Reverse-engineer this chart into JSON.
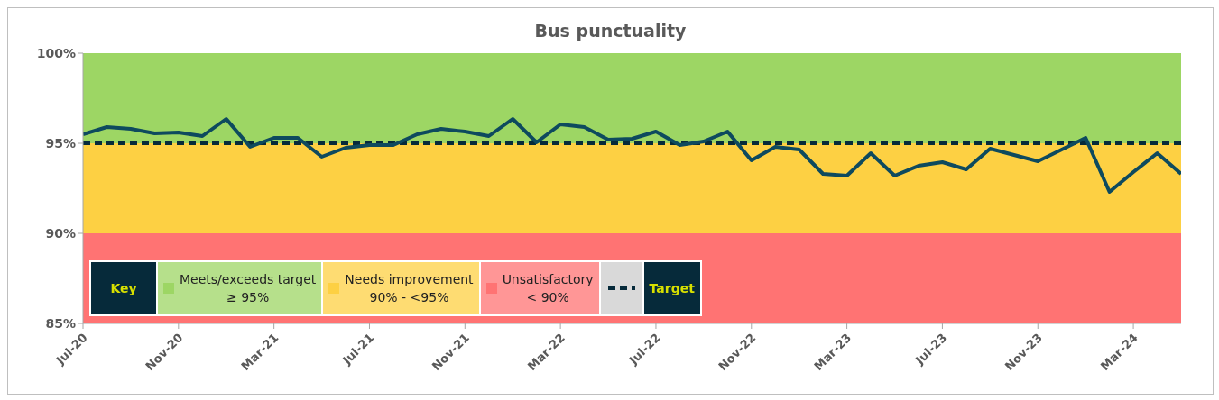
{
  "chart_data": {
    "type": "line",
    "title": "Bus punctuality",
    "x": [
      "2020-07",
      "2020-08",
      "2020-09",
      "2020-10",
      "2020-11",
      "2020-12",
      "2021-01",
      "2021-02",
      "2021-03",
      "2021-04",
      "2021-05",
      "2021-06",
      "2021-07",
      "2021-08",
      "2021-09",
      "2021-10",
      "2021-11",
      "2021-12",
      "2022-01",
      "2022-02",
      "2022-03",
      "2022-04",
      "2022-05",
      "2022-06",
      "2022-07",
      "2022-08",
      "2022-09",
      "2022-10",
      "2022-11",
      "2022-12",
      "2023-01",
      "2023-02",
      "2023-03",
      "2023-04",
      "2023-05",
      "2023-06",
      "2023-07",
      "2023-08",
      "2023-09",
      "2023-10",
      "2023-11",
      "2023-12",
      "2024-01",
      "2024-02",
      "2024-03",
      "2024-04",
      "2024-05"
    ],
    "series": [
      {
        "color": "#0e4a5e",
        "values": [
          95.5,
          95.9,
          95.8,
          95.55,
          95.6,
          95.4,
          96.35,
          94.8,
          95.3,
          95.3,
          94.25,
          94.75,
          94.9,
          94.9,
          95.5,
          95.8,
          95.65,
          95.4,
          96.35,
          95.05,
          96.05,
          95.9,
          95.2,
          95.25,
          95.65,
          94.9,
          95.1,
          95.65,
          94.05,
          94.8,
          94.65,
          93.3,
          93.2,
          94.45,
          93.2,
          93.75,
          93.95,
          93.55,
          94.7,
          94.35,
          94.0,
          94.65,
          95.3,
          92.3,
          93.4,
          94.45,
          93.3
        ]
      }
    ],
    "xlim": [
      "2020-07",
      "2024-05"
    ],
    "xticks": [
      {
        "value": "2020-07",
        "label": "Jul-20"
      },
      {
        "value": "2020-11",
        "label": "Nov-20"
      },
      {
        "value": "2021-03",
        "label": "Mar-21"
      },
      {
        "value": "2021-07",
        "label": "Jul-21"
      },
      {
        "value": "2021-11",
        "label": "Nov-21"
      },
      {
        "value": "2022-03",
        "label": "Mar-22"
      },
      {
        "value": "2022-07",
        "label": "Jul-22"
      },
      {
        "value": "2022-11",
        "label": "Nov-22"
      },
      {
        "value": "2023-03",
        "label": "Mar-23"
      },
      {
        "value": "2023-07",
        "label": "Jul-23"
      },
      {
        "value": "2023-11",
        "label": "Nov-23"
      },
      {
        "value": "2024-03",
        "label": "Mar-24"
      }
    ],
    "ylim": [
      85,
      100
    ],
    "yticks": [
      {
        "value": 85,
        "label": "85%"
      },
      {
        "value": 90,
        "label": "90%"
      },
      {
        "value": 95,
        "label": "95%"
      },
      {
        "value": 100,
        "label": "100%"
      }
    ],
    "bands": [
      {
        "axis": "y",
        "from": 95,
        "to": 100,
        "label": "Meets/exceeds target\n≥ 95%",
        "color": "#9dd664"
      },
      {
        "axis": "y",
        "from": 90,
        "to": 95,
        "label": "Needs improvement\n90% - <95%",
        "color": "#fdd043"
      },
      {
        "axis": "y",
        "from": 85,
        "to": 90,
        "label": "Unsatisfactory\n< 90%",
        "color": "#ff7373"
      }
    ],
    "ref_lines": [
      {
        "axis": "y",
        "value": 95,
        "label": "Target",
        "color": "#062a3a",
        "line_style": "dashed"
      }
    ],
    "legend_title": "Key",
    "legend": "bottom left",
    "marker": "none",
    "line_style": "solid"
  }
}
